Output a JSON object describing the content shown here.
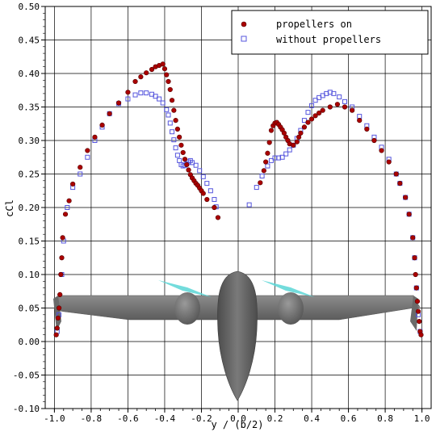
{
  "chart_data": {
    "type": "scatter",
    "xlabel": "y / (b/2)",
    "ylabel": "cCl",
    "xlim": [
      -1.05,
      1.05
    ],
    "ylim": [
      -0.1,
      0.5
    ],
    "xticks": [
      -1.0,
      -0.8,
      -0.6,
      -0.4,
      -0.2,
      0.0,
      0.2,
      0.4,
      0.6,
      0.8,
      1.0
    ],
    "xtick_labels": [
      "-1.0",
      "-0.8",
      "-0.6",
      "-0.4",
      "-0.2",
      "0.0",
      "0.2",
      "0.4",
      "0.6",
      "0.8",
      "1.0"
    ],
    "yticks": [
      -0.1,
      -0.05,
      0.0,
      0.05,
      0.1,
      0.15,
      0.2,
      0.25,
      0.3,
      0.35,
      0.4,
      0.45,
      0.5
    ],
    "ytick_labels": [
      "-0.10",
      "-0.05",
      "0.00",
      "0.05",
      "0.10",
      "0.15",
      "0.20",
      "0.25",
      "0.30",
      "0.35",
      "0.40",
      "0.45",
      "0.50"
    ],
    "grid": true,
    "legend_position": "top-right",
    "series": [
      {
        "name": "propellers on",
        "marker": "filled-circle",
        "color": "#aa0000",
        "points": [
          [
            -0.99,
            0.01
          ],
          [
            -0.985,
            0.02
          ],
          [
            -0.98,
            0.035
          ],
          [
            -0.975,
            0.05
          ],
          [
            -0.97,
            0.07
          ],
          [
            -0.965,
            0.1
          ],
          [
            -0.96,
            0.125
          ],
          [
            -0.955,
            0.155
          ],
          [
            -0.94,
            0.19
          ],
          [
            -0.92,
            0.21
          ],
          [
            -0.9,
            0.235
          ],
          [
            -0.86,
            0.26
          ],
          [
            -0.82,
            0.285
          ],
          [
            -0.78,
            0.305
          ],
          [
            -0.74,
            0.323
          ],
          [
            -0.7,
            0.34
          ],
          [
            -0.65,
            0.356
          ],
          [
            -0.6,
            0.372
          ],
          [
            -0.56,
            0.388
          ],
          [
            -0.53,
            0.395
          ],
          [
            -0.5,
            0.401
          ],
          [
            -0.47,
            0.406
          ],
          [
            -0.45,
            0.41
          ],
          [
            -0.43,
            0.412
          ],
          [
            -0.41,
            0.414
          ],
          [
            -0.4,
            0.407
          ],
          [
            -0.39,
            0.398
          ],
          [
            -0.38,
            0.388
          ],
          [
            -0.37,
            0.376
          ],
          [
            -0.36,
            0.36
          ],
          [
            -0.35,
            0.345
          ],
          [
            -0.34,
            0.33
          ],
          [
            -0.33,
            0.317
          ],
          [
            -0.32,
            0.305
          ],
          [
            -0.31,
            0.293
          ],
          [
            -0.3,
            0.282
          ],
          [
            -0.29,
            0.272
          ],
          [
            -0.28,
            0.264
          ],
          [
            -0.27,
            0.256
          ],
          [
            -0.26,
            0.249
          ],
          [
            -0.25,
            0.244
          ],
          [
            -0.24,
            0.24
          ],
          [
            -0.23,
            0.236
          ],
          [
            -0.22,
            0.233
          ],
          [
            -0.21,
            0.229
          ],
          [
            -0.2,
            0.225
          ],
          [
            -0.19,
            0.221
          ],
          [
            -0.17,
            0.212
          ],
          [
            -0.13,
            0.2
          ],
          [
            -0.11,
            0.185
          ],
          [
            0.12,
            0.237
          ],
          [
            0.14,
            0.255
          ],
          [
            0.15,
            0.268
          ],
          [
            0.16,
            0.281
          ],
          [
            0.17,
            0.297
          ],
          [
            0.18,
            0.315
          ],
          [
            0.19,
            0.322
          ],
          [
            0.2,
            0.326
          ],
          [
            0.21,
            0.327
          ],
          [
            0.22,
            0.324
          ],
          [
            0.23,
            0.32
          ],
          [
            0.24,
            0.316
          ],
          [
            0.25,
            0.311
          ],
          [
            0.26,
            0.305
          ],
          [
            0.27,
            0.3
          ],
          [
            0.28,
            0.295
          ],
          [
            0.3,
            0.293
          ],
          [
            0.32,
            0.298
          ],
          [
            0.33,
            0.305
          ],
          [
            0.34,
            0.311
          ],
          [
            0.36,
            0.32
          ],
          [
            0.38,
            0.327
          ],
          [
            0.4,
            0.332
          ],
          [
            0.42,
            0.337
          ],
          [
            0.44,
            0.341
          ],
          [
            0.46,
            0.345
          ],
          [
            0.5,
            0.35
          ],
          [
            0.54,
            0.354
          ],
          [
            0.58,
            0.35
          ],
          [
            0.62,
            0.345
          ],
          [
            0.66,
            0.33
          ],
          [
            0.7,
            0.317
          ],
          [
            0.74,
            0.3
          ],
          [
            0.78,
            0.285
          ],
          [
            0.82,
            0.268
          ],
          [
            0.86,
            0.25
          ],
          [
            0.88,
            0.236
          ],
          [
            0.91,
            0.215
          ],
          [
            0.93,
            0.19
          ],
          [
            0.95,
            0.155
          ],
          [
            0.96,
            0.125
          ],
          [
            0.965,
            0.1
          ],
          [
            0.97,
            0.08
          ],
          [
            0.975,
            0.06
          ],
          [
            0.98,
            0.045
          ],
          [
            0.985,
            0.03
          ],
          [
            0.99,
            0.015
          ],
          [
            0.995,
            0.01
          ]
        ]
      },
      {
        "name": "without propellers",
        "marker": "open-square",
        "color": "#5555dd",
        "points": [
          [
            -0.985,
            0.015
          ],
          [
            -0.975,
            0.04
          ],
          [
            -0.96,
            0.1
          ],
          [
            -0.95,
            0.15
          ],
          [
            -0.93,
            0.2
          ],
          [
            -0.9,
            0.23
          ],
          [
            -0.86,
            0.25
          ],
          [
            -0.82,
            0.275
          ],
          [
            -0.78,
            0.3
          ],
          [
            -0.74,
            0.32
          ],
          [
            -0.7,
            0.34
          ],
          [
            -0.65,
            0.355
          ],
          [
            -0.6,
            0.362
          ],
          [
            -0.56,
            0.368
          ],
          [
            -0.53,
            0.371
          ],
          [
            -0.5,
            0.371
          ],
          [
            -0.47,
            0.369
          ],
          [
            -0.45,
            0.366
          ],
          [
            -0.43,
            0.362
          ],
          [
            -0.41,
            0.356
          ],
          [
            -0.39,
            0.346
          ],
          [
            -0.38,
            0.338
          ],
          [
            -0.37,
            0.326
          ],
          [
            -0.36,
            0.313
          ],
          [
            -0.35,
            0.301
          ],
          [
            -0.34,
            0.289
          ],
          [
            -0.33,
            0.278
          ],
          [
            -0.32,
            0.27
          ],
          [
            -0.31,
            0.264
          ],
          [
            -0.3,
            0.262
          ],
          [
            -0.29,
            0.263
          ],
          [
            -0.28,
            0.265
          ],
          [
            -0.27,
            0.268
          ],
          [
            -0.26,
            0.27
          ],
          [
            -0.25,
            0.267
          ],
          [
            -0.23,
            0.263
          ],
          [
            -0.21,
            0.255
          ],
          [
            -0.19,
            0.246
          ],
          [
            -0.17,
            0.236
          ],
          [
            -0.15,
            0.225
          ],
          [
            -0.13,
            0.212
          ],
          [
            -0.12,
            0.201
          ],
          [
            0.06,
            0.204
          ],
          [
            0.1,
            0.23
          ],
          [
            0.13,
            0.247
          ],
          [
            0.16,
            0.262
          ],
          [
            0.18,
            0.27
          ],
          [
            0.2,
            0.274
          ],
          [
            0.22,
            0.274
          ],
          [
            0.24,
            0.275
          ],
          [
            0.26,
            0.28
          ],
          [
            0.28,
            0.286
          ],
          [
            0.3,
            0.293
          ],
          [
            0.32,
            0.303
          ],
          [
            0.34,
            0.315
          ],
          [
            0.36,
            0.33
          ],
          [
            0.38,
            0.342
          ],
          [
            0.4,
            0.352
          ],
          [
            0.42,
            0.36
          ],
          [
            0.44,
            0.364
          ],
          [
            0.46,
            0.367
          ],
          [
            0.48,
            0.37
          ],
          [
            0.5,
            0.372
          ],
          [
            0.52,
            0.37
          ],
          [
            0.55,
            0.365
          ],
          [
            0.58,
            0.358
          ],
          [
            0.62,
            0.35
          ],
          [
            0.66,
            0.336
          ],
          [
            0.7,
            0.322
          ],
          [
            0.74,
            0.305
          ],
          [
            0.78,
            0.29
          ],
          [
            0.82,
            0.272
          ],
          [
            0.86,
            0.25
          ],
          [
            0.88,
            0.236
          ],
          [
            0.91,
            0.215
          ],
          [
            0.93,
            0.19
          ],
          [
            0.95,
            0.155
          ],
          [
            0.96,
            0.125
          ],
          [
            0.97,
            0.08
          ],
          [
            0.98,
            0.04
          ],
          [
            0.99,
            0.015
          ]
        ]
      }
    ]
  }
}
